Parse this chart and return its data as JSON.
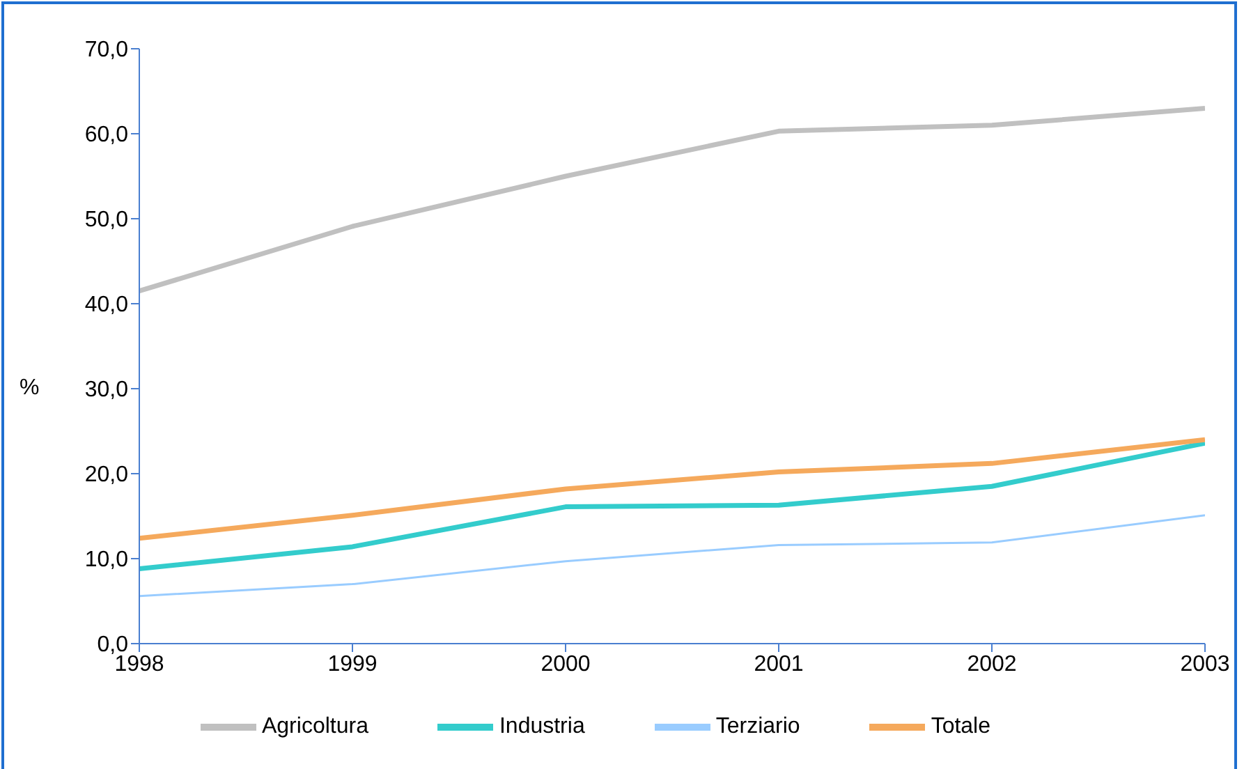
{
  "chart_data": {
    "type": "line",
    "ylabel": "%",
    "x": [
      1998,
      1999,
      2000,
      2001,
      2002,
      2003
    ],
    "xlim": [
      1998,
      2003
    ],
    "xticks": [
      1998,
      1999,
      2000,
      2001,
      2002,
      2003
    ],
    "ylim": [
      0,
      70
    ],
    "yticks": [
      {
        "value": 0,
        "label": "0,0"
      },
      {
        "value": 10,
        "label": "10,0"
      },
      {
        "value": 20,
        "label": "20,0"
      },
      {
        "value": 30,
        "label": "30,0"
      },
      {
        "value": 40,
        "label": "40,0"
      },
      {
        "value": 50,
        "label": "50,0"
      },
      {
        "value": 60,
        "label": "60,0"
      },
      {
        "value": 70,
        "label": "70,0"
      }
    ],
    "grid": false,
    "legend": "bottom",
    "marker": "none",
    "line_style": "solid",
    "series": [
      {
        "name": "Agricoltura",
        "color": "#c0c0c0",
        "values": [
          41.5,
          49.1,
          55.0,
          60.3,
          61.0,
          63.0
        ]
      },
      {
        "name": "Industria",
        "color": "#33cccc",
        "values": [
          8.8,
          11.4,
          16.1,
          16.3,
          18.5,
          23.6
        ]
      },
      {
        "name": "Terziario",
        "color": "#99ccff",
        "values": [
          5.6,
          7.0,
          9.7,
          11.6,
          11.9,
          15.1
        ]
      },
      {
        "name": "Totale",
        "color": "#f5a95c",
        "values": [
          12.4,
          15.1,
          18.2,
          20.2,
          21.2,
          24.0
        ]
      }
    ]
  }
}
